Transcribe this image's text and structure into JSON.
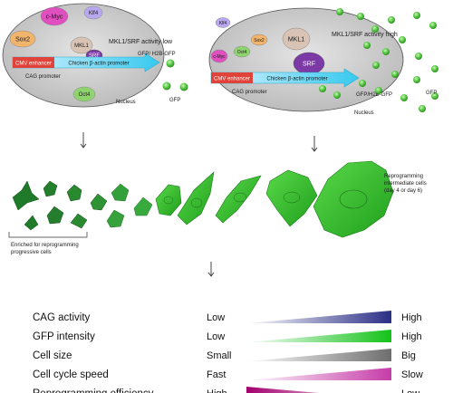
{
  "left_cell": {
    "factors": [
      "c-Myc",
      "Klf4",
      "Sox2",
      "MKL1",
      "SRF",
      "Oct4"
    ],
    "activity": "MKL1/SRF activity low",
    "reporter": "GFP/ H2B-GFP",
    "enhancer": "CMV enhancer",
    "promoter": "Chicken β-actin promoter",
    "cag": "CAG promoter",
    "nucleus": "Nucleus"
  },
  "right_cell": {
    "factors": [
      "Klf4",
      "Sox2",
      "Oct4",
      "c-Myc",
      "MKL1",
      "SRF"
    ],
    "activity": "MKL1/SRF activity high",
    "reporter": "GFP/H2B-GFP",
    "enhancer": "CMV enhancer",
    "promoter": "Chicken β-actin promoter",
    "cag": "CAG promoter",
    "nucleus": "Nucleus"
  },
  "gfp_label": "GFP",
  "labels": {
    "enriched": "Enriched for reprogramming progressive cells",
    "intermediate": "Reprogramming intermediate cells (day 4 or day 6)"
  },
  "gradients": [
    {
      "label": "CAG activity",
      "left": "Low",
      "right": "High",
      "color": "#2b2f86",
      "direction": "increasing"
    },
    {
      "label": "GFP intensity",
      "left": "Low",
      "right": "High",
      "color": "#14c21a",
      "direction": "increasing"
    },
    {
      "label": "Cell size",
      "left": "Small",
      "right": "Big",
      "color": "#6e6e6e",
      "direction": "increasing"
    },
    {
      "label": "Cell cycle speed",
      "left": "Fast",
      "right": "Slow",
      "color": "#c63ca8",
      "direction": "increasing"
    },
    {
      "label": "Reprogramming efficiency",
      "left": "High",
      "right": "Low",
      "color": "#a3006e",
      "direction": "decreasing"
    }
  ]
}
